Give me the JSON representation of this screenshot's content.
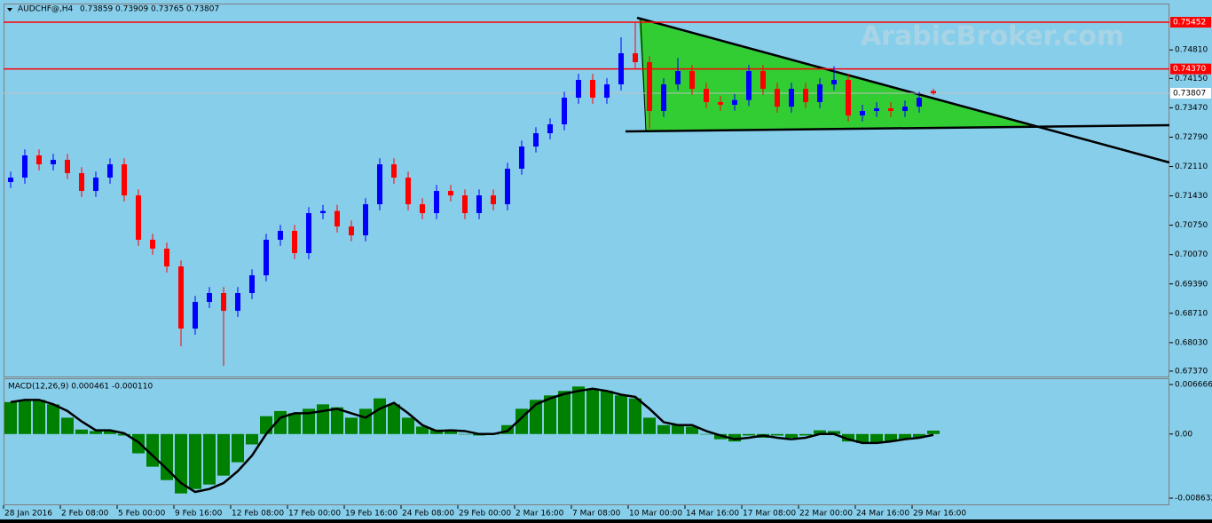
{
  "chart_data": [
    {
      "type": "candlestick",
      "symbol": "AUDCHF@,H4",
      "quote": [
        0.73859,
        0.73909,
        0.73765,
        0.73807
      ],
      "watermark": "ArabicBroker.com",
      "categories": [
        "28 Jan 2016",
        null,
        null,
        null,
        "2 Feb 08:00",
        null,
        null,
        null,
        "5 Feb 00:00",
        null,
        null,
        null,
        "9 Feb 16:00",
        null,
        null,
        null,
        "12 Feb 08:00",
        null,
        null,
        null,
        "17 Feb 00:00",
        null,
        null,
        null,
        "19 Feb 16:00",
        null,
        null,
        null,
        "24 Feb 08:00",
        null,
        null,
        null,
        "29 Feb 00:00",
        null,
        null,
        null,
        "2 Mar 16:00",
        null,
        null,
        null,
        "7 Mar 08:00",
        null,
        null,
        null,
        "10 Mar 00:00",
        null,
        null,
        null,
        "14 Mar 16:00",
        null,
        null,
        null,
        "17 Mar 08:00",
        null,
        null,
        null,
        "22 Mar 00:00",
        null,
        null,
        null,
        "24 Mar 16:00",
        null,
        null,
        null,
        "29 Mar 16:00",
        null
      ],
      "open": [
        0.7175,
        0.71853,
        0.72367,
        0.72161,
        0.72264,
        0.71956,
        0.71544,
        0.71853,
        0.72161,
        0.71441,
        0.70413,
        0.70207,
        0.69796,
        0.68356,
        0.68973,
        0.69179,
        0.68767,
        0.69179,
        0.6959,
        0.70413,
        0.70619,
        0.70104,
        0.7103,
        0.7108,
        0.70721,
        0.70516,
        0.71236,
        0.72161,
        0.71853,
        0.71236,
        0.7103,
        0.71544,
        0.71441,
        0.7103,
        0.71441,
        0.71236,
        0.72059,
        0.72573,
        0.72881,
        0.73087,
        0.73704,
        0.74116,
        0.73704,
        0.74013,
        0.74733,
        0.74527,
        0.73396,
        0.74013,
        0.74321,
        0.7391,
        0.73601,
        0.7354,
        0.7365,
        0.74321,
        0.7391,
        0.73498,
        0.7391,
        0.73601,
        0.74013,
        0.74116,
        0.73293,
        0.73396,
        0.73457,
        0.73396,
        0.73498,
        0.73859
      ],
      "high": [
        0.71993,
        0.72507,
        0.72507,
        0.72404,
        0.72404,
        0.72096,
        0.71993,
        0.72301,
        0.72301,
        0.71581,
        0.70553,
        0.70347,
        0.69936,
        0.69113,
        0.69319,
        0.69319,
        0.69319,
        0.6973,
        0.70553,
        0.70759,
        0.70759,
        0.7117,
        0.7122,
        0.7122,
        0.70861,
        0.71376,
        0.72301,
        0.72301,
        0.71993,
        0.71376,
        0.71684,
        0.71684,
        0.71581,
        0.71581,
        0.71581,
        0.72199,
        0.72713,
        0.73021,
        0.73227,
        0.73844,
        0.74256,
        0.74256,
        0.74153,
        0.75103,
        0.75452,
        0.74667,
        0.74153,
        0.74625,
        0.74461,
        0.7405,
        0.73741,
        0.7379,
        0.74461,
        0.74461,
        0.7405,
        0.7405,
        0.7405,
        0.74153,
        0.74432,
        0.74256,
        0.73536,
        0.73597,
        0.73597,
        0.73638,
        0.73844,
        0.73909
      ],
      "low": [
        0.7161,
        0.71713,
        0.72021,
        0.72021,
        0.71816,
        0.71404,
        0.71404,
        0.71713,
        0.71301,
        0.70273,
        0.70067,
        0.69656,
        0.67946,
        0.68216,
        0.68833,
        0.67492,
        0.68627,
        0.69039,
        0.6945,
        0.70273,
        0.69964,
        0.69964,
        0.7089,
        0.70581,
        0.70376,
        0.70376,
        0.71096,
        0.71713,
        0.71096,
        0.7089,
        0.7089,
        0.71301,
        0.7089,
        0.7089,
        0.71096,
        0.71096,
        0.71919,
        0.72433,
        0.72741,
        0.72947,
        0.73564,
        0.73564,
        0.73564,
        0.73873,
        0.74387,
        0.72984,
        0.73256,
        0.73873,
        0.7377,
        0.73461,
        0.734,
        0.734,
        0.7351,
        0.7377,
        0.73358,
        0.73358,
        0.73461,
        0.73461,
        0.73873,
        0.73153,
        0.73153,
        0.73256,
        0.73256,
        0.73256,
        0.73358,
        0.73765
      ],
      "close": [
        0.71853,
        0.72367,
        0.72161,
        0.72264,
        0.71956,
        0.71544,
        0.71853,
        0.72161,
        0.71441,
        0.70413,
        0.70207,
        0.69796,
        0.68356,
        0.68973,
        0.69179,
        0.68767,
        0.69179,
        0.6959,
        0.70413,
        0.70619,
        0.70104,
        0.7103,
        0.7108,
        0.70721,
        0.70516,
        0.71236,
        0.72161,
        0.71853,
        0.71236,
        0.7103,
        0.71544,
        0.71441,
        0.7103,
        0.71441,
        0.71236,
        0.72059,
        0.72573,
        0.72881,
        0.73087,
        0.73704,
        0.74116,
        0.73704,
        0.74013,
        0.74733,
        0.74527,
        0.73396,
        0.74013,
        0.74321,
        0.7391,
        0.73601,
        0.7354,
        0.7365,
        0.74321,
        0.7391,
        0.73498,
        0.7391,
        0.73601,
        0.74013,
        0.74116,
        0.73293,
        0.73396,
        0.73457,
        0.73396,
        0.73498,
        0.73704,
        0.73807
      ],
      "colors": {
        "up": "#0000ff",
        "down": "#ff0000"
      },
      "ylim": [
        0.67246,
        0.75864
      ],
      "yticks": [
        {
          "value": 0.7481,
          "label": "0.74810"
        },
        {
          "value": 0.7415,
          "label": "0.74150"
        },
        {
          "value": 0.7347,
          "label": "0.73470"
        },
        {
          "value": 0.7279,
          "label": "0.72790"
        },
        {
          "value": 0.7211,
          "label": "0.72110"
        },
        {
          "value": 0.7143,
          "label": "0.71430"
        },
        {
          "value": 0.7075,
          "label": "0.70750"
        },
        {
          "value": 0.7007,
          "label": "0.70070"
        },
        {
          "value": 0.6939,
          "label": "0.69390"
        },
        {
          "value": 0.6871,
          "label": "0.68710"
        },
        {
          "value": 0.6803,
          "label": "0.68030"
        },
        {
          "value": 0.6737,
          "label": "0.67370"
        }
      ],
      "hlines": [
        {
          "value": 0.75452,
          "color": "#ff0000"
        },
        {
          "value": 0.7437,
          "label": "0.74370",
          "color": "#ff0000"
        }
      ],
      "last_price": 0.73807,
      "last_price_color": "#c0c0c0"
    },
    {
      "type": "macd",
      "title": "MACD(12,26,9) 0.000461 -0.000110",
      "histogram": {
        "color": "#008000",
        "values": [
          0.0043,
          0.0046,
          0.0046,
          0.004,
          0.0022,
          0.0006,
          0.0004,
          0.0005,
          -0.0002,
          -0.0026,
          -0.0044,
          -0.0062,
          -0.008,
          -0.0074,
          -0.0068,
          -0.0056,
          -0.0038,
          -0.0014,
          0.0024,
          0.0031,
          0.0028,
          0.0034,
          0.004,
          0.0036,
          0.0022,
          0.0034,
          0.0048,
          0.004,
          0.0022,
          0.001,
          0.0006,
          0.0006,
          0,
          -0.0002,
          0,
          0.0012,
          0.0034,
          0.0046,
          0.0052,
          0.0058,
          0.0064,
          0.0061,
          0.0058,
          0.0052,
          0.0048,
          0.0022,
          0.0012,
          0.0012,
          0.001,
          0,
          -0.0007,
          -0.001,
          -0.0002,
          -0.0005,
          -0.0002,
          -0.0005,
          -0.0002,
          0.0005,
          0.0004,
          -0.001,
          -0.0012,
          -0.0011,
          -0.001,
          -0.0007,
          -0.0004,
          0.000461
        ]
      },
      "signal": {
        "color": "#000000",
        "values": [
          0.0043,
          0.0046,
          0.0046,
          0.004,
          0.0031,
          0.0017,
          0.0005,
          0.0005,
          0.0001,
          -0.0011,
          -0.0029,
          -0.0047,
          -0.0066,
          -0.0078,
          -0.0074,
          -0.0066,
          -0.005,
          -0.0029,
          0,
          0.0022,
          0.0028,
          0.0028,
          0.0031,
          0.0034,
          0.0028,
          0.0022,
          0.0034,
          0.0042,
          0.0028,
          0.0012,
          0.0004,
          0.0005,
          0.0004,
          0,
          0,
          0.0004,
          0.0022,
          0.004,
          0.0048,
          0.0054,
          0.0058,
          0.0061,
          0.0058,
          0.0053,
          0.005,
          0.0034,
          0.0016,
          0.0012,
          0.0012,
          0.0004,
          -0.0002,
          -0.0007,
          -0.0005,
          -0.0002,
          -0.0005,
          -0.0007,
          -0.0005,
          0,
          0,
          -0.0007,
          -0.0012,
          -0.0012,
          -0.001,
          -0.0007,
          -0.0005,
          -0.00011
        ]
      },
      "ylim": [
        -0.00947,
        0.00739
      ],
      "yticks": [
        0.006666,
        {
          "value": 0,
          "label": "0.00"
        },
        -0.008632
      ]
    }
  ]
}
